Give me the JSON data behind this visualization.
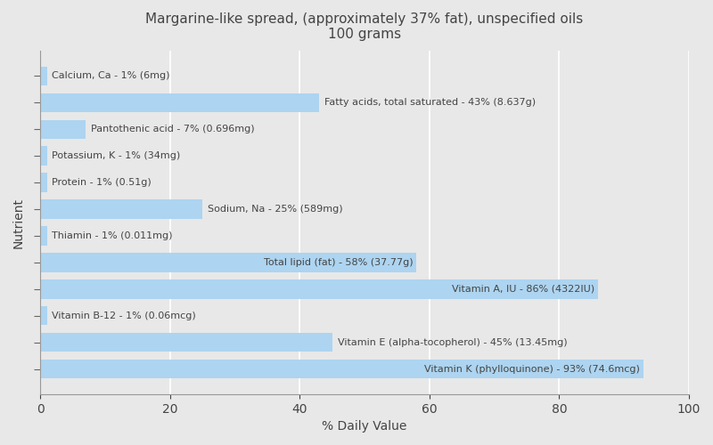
{
  "title": "Margarine-like spread, (approximately 37% fat), unspecified oils\n100 grams",
  "xlabel": "% Daily Value",
  "ylabel": "Nutrient",
  "xlim": [
    0,
    100
  ],
  "xticks": [
    0,
    20,
    40,
    60,
    80,
    100
  ],
  "background_color": "#e8e8e8",
  "bar_color": "#add4f0",
  "nutrients": [
    {
      "label": "Vitamin K (phylloquinone) - 93% (74.6mcg)",
      "value": 93
    },
    {
      "label": "Vitamin E (alpha-tocopherol) - 45% (13.45mg)",
      "value": 45
    },
    {
      "label": "Vitamin B-12 - 1% (0.06mcg)",
      "value": 1
    },
    {
      "label": "Vitamin A, IU - 86% (4322IU)",
      "value": 86
    },
    {
      "label": "Total lipid (fat) - 58% (37.77g)",
      "value": 58
    },
    {
      "label": "Thiamin - 1% (0.011mg)",
      "value": 1
    },
    {
      "label": "Sodium, Na - 25% (589mg)",
      "value": 25
    },
    {
      "label": "Protein - 1% (0.51g)",
      "value": 1
    },
    {
      "label": "Potassium, K - 1% (34mg)",
      "value": 1
    },
    {
      "label": "Pantothenic acid - 7% (0.696mg)",
      "value": 7
    },
    {
      "label": "Fatty acids, total saturated - 43% (8.637g)",
      "value": 43
    },
    {
      "label": "Calcium, Ca - 1% (6mg)",
      "value": 1
    }
  ],
  "label_threshold": 50,
  "text_color": "#444444",
  "text_fontsize": 8.0,
  "title_fontsize": 11,
  "xlabel_fontsize": 10,
  "ylabel_fontsize": 10
}
